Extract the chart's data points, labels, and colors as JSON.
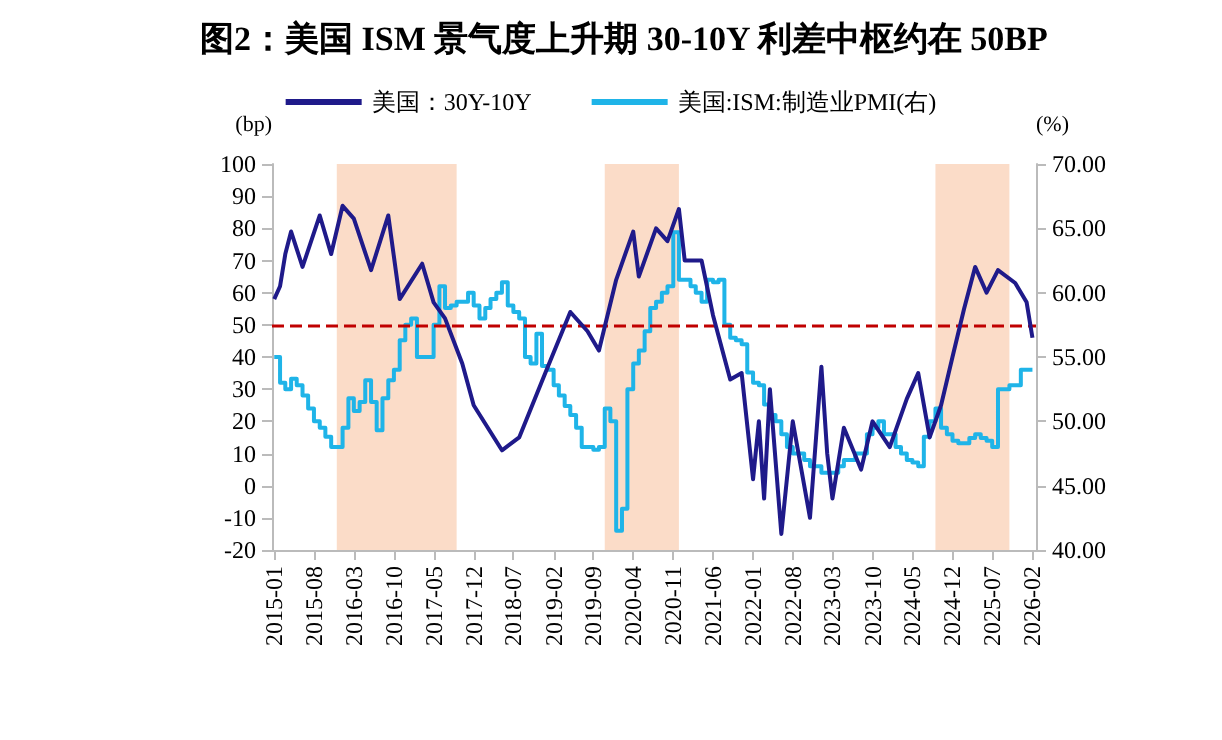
{
  "chart_data": {
    "type": "line",
    "title": "图2：美国 ISM 景气度上升期 30-10Y 利差中枢约在 50BP",
    "ylabel": "(bp)",
    "y2label": "(%)",
    "xlim": [
      "2014-12-20",
      "2026-02-20"
    ],
    "xticks": [
      "2015-01",
      "2015-08",
      "2016-03",
      "2016-10",
      "2017-05",
      "2017-12",
      "2018-07",
      "2019-02",
      "2019-09",
      "2020-04",
      "2020-11",
      "2021-06",
      "2022-01",
      "2022-08",
      "2023-03",
      "2023-10",
      "2024-05",
      "2024-12",
      "2025-07",
      "2026-02"
    ],
    "ylim": [
      -20,
      100
    ],
    "yticks": [
      -20,
      -10,
      0,
      10,
      20,
      30,
      40,
      50,
      60,
      70,
      80,
      90,
      100
    ],
    "y2lim": [
      40,
      70
    ],
    "y2ticks": [
      {
        "value": 40,
        "label": "40.00"
      },
      {
        "value": 45,
        "label": "45.00"
      },
      {
        "value": 50,
        "label": "50.00"
      },
      {
        "value": 55,
        "label": "55.00"
      },
      {
        "value": 60,
        "label": "60.00"
      },
      {
        "value": 65,
        "label": "65.00"
      },
      {
        "value": 70,
        "label": "70.00"
      }
    ],
    "legend": "top",
    "grid": false,
    "marker": "none",
    "line_style": "solid",
    "series": [
      {
        "name": "美国：30Y-10Y",
        "type": "line",
        "color": "#1f1a8a",
        "x": [
          "2015-01",
          "2015-02",
          "2015-03",
          "2015-04",
          "2015-06",
          "2015-09",
          "2015-11",
          "2016-01",
          "2016-03",
          "2016-06",
          "2016-09",
          "2016-11",
          "2017-03",
          "2017-05",
          "2017-07",
          "2017-10",
          "2017-12",
          "2018-05",
          "2018-08",
          "2019-01",
          "2019-05",
          "2019-08",
          "2019-10",
          "2020-01",
          "2020-04",
          "2020-05",
          "2020-08",
          "2020-10",
          "2020-12",
          "2021-01",
          "2021-04",
          "2021-06",
          "2021-09",
          "2021-11",
          "2022-01",
          "2022-02",
          "2022-03",
          "2022-04",
          "2022-06",
          "2022-08",
          "2022-11",
          "2023-01",
          "2023-02",
          "2023-03",
          "2023-05",
          "2023-08",
          "2023-10",
          "2024-01",
          "2024-04",
          "2024-06",
          "2024-08",
          "2024-10",
          "2024-12",
          "2025-02",
          "2025-04",
          "2025-06",
          "2025-08",
          "2025-11",
          "2026-01",
          "2026-02"
        ],
        "values": [
          58,
          62,
          72,
          79,
          68,
          84,
          72,
          87,
          83,
          67,
          84,
          58,
          69,
          57,
          52,
          38,
          25,
          11,
          15,
          37,
          54,
          48,
          42,
          64,
          79,
          65,
          80,
          76,
          86,
          70,
          70,
          53,
          33,
          35,
          2,
          20,
          -4,
          30,
          -15,
          20,
          -10,
          37,
          10,
          -4,
          18,
          5,
          20,
          12,
          27,
          35,
          15,
          25,
          40,
          55,
          68,
          60,
          67,
          63,
          57,
          46
        ]
      },
      {
        "name": "美国:ISM:制造业PMI(右)",
        "type": "step",
        "axis": "y2",
        "color": "#1fb4e8",
        "x": [
          "2015-01",
          "2015-02",
          "2015-03",
          "2015-04",
          "2015-05",
          "2015-06",
          "2015-07",
          "2015-08",
          "2015-09",
          "2015-10",
          "2015-11",
          "2015-12",
          "2016-01",
          "2016-02",
          "2016-03",
          "2016-04",
          "2016-05",
          "2016-06",
          "2016-07",
          "2016-08",
          "2016-09",
          "2016-10",
          "2016-11",
          "2016-12",
          "2017-01",
          "2017-02",
          "2017-03",
          "2017-04",
          "2017-05",
          "2017-06",
          "2017-07",
          "2017-08",
          "2017-09",
          "2017-10",
          "2017-11",
          "2017-12",
          "2018-01",
          "2018-02",
          "2018-03",
          "2018-04",
          "2018-05",
          "2018-06",
          "2018-07",
          "2018-08",
          "2018-09",
          "2018-10",
          "2018-11",
          "2018-12",
          "2019-01",
          "2019-02",
          "2019-03",
          "2019-04",
          "2019-05",
          "2019-06",
          "2019-07",
          "2019-08",
          "2019-09",
          "2019-10",
          "2019-11",
          "2019-12",
          "2020-01",
          "2020-02",
          "2020-03",
          "2020-04",
          "2020-05",
          "2020-06",
          "2020-07",
          "2020-08",
          "2020-09",
          "2020-10",
          "2020-11",
          "2020-12",
          "2021-01",
          "2021-02",
          "2021-03",
          "2021-04",
          "2021-05",
          "2021-06",
          "2021-07",
          "2021-08",
          "2021-09",
          "2021-10",
          "2021-11",
          "2021-12",
          "2022-01",
          "2022-02",
          "2022-03",
          "2022-04",
          "2022-05",
          "2022-06",
          "2022-07",
          "2022-08",
          "2022-09",
          "2022-10",
          "2022-11",
          "2022-12",
          "2023-01",
          "2023-02",
          "2023-03",
          "2023-04",
          "2023-05",
          "2023-06",
          "2023-07",
          "2023-08",
          "2023-09",
          "2023-10",
          "2023-11",
          "2023-12",
          "2024-01",
          "2024-02",
          "2024-03",
          "2024-04",
          "2024-05",
          "2024-06",
          "2024-07",
          "2024-08",
          "2024-09",
          "2024-10",
          "2024-11",
          "2024-12",
          "2025-01",
          "2025-02",
          "2025-03",
          "2025-04",
          "2025-05",
          "2025-06",
          "2025-07",
          "2025-08",
          "2025-09",
          "2025-10",
          "2025-11",
          "2025-12",
          "2026-01",
          "2026-02"
        ],
        "values": [
          55.0,
          53.0,
          52.5,
          53.3,
          52.8,
          52.0,
          51.0,
          50.0,
          49.5,
          48.8,
          48.0,
          48.0,
          49.5,
          51.8,
          50.8,
          51.5,
          53.2,
          51.5,
          49.3,
          51.8,
          53.2,
          54.0,
          56.3,
          57.5,
          58.0,
          55.0,
          55.0,
          55.0,
          57.5,
          60.5,
          58.8,
          59.0,
          59.3,
          59.3,
          60.0,
          59.0,
          58.0,
          58.8,
          59.5,
          60.0,
          60.8,
          59.0,
          58.5,
          58.0,
          55.0,
          54.5,
          56.8,
          54.3,
          54.0,
          52.8,
          52.0,
          51.2,
          50.5,
          49.5,
          48.0,
          48.0,
          47.8,
          48.0,
          51.0,
          50.0,
          41.5,
          43.2,
          52.5,
          54.5,
          55.5,
          57.0,
          58.8,
          59.3,
          60.0,
          60.5,
          64.7,
          61.0,
          61.0,
          60.5,
          60.0,
          59.3,
          61.0,
          60.8,
          61.0,
          57.5,
          56.5,
          56.3,
          56.0,
          53.8,
          53.0,
          52.8,
          51.3,
          50.5,
          50.0,
          49.0,
          48.0,
          47.5,
          47.5,
          47.0,
          46.5,
          46.5,
          46.0,
          46.0,
          46.0,
          46.5,
          47.0,
          47.0,
          47.5,
          47.5,
          49.0,
          49.5,
          50.0,
          49.0,
          49.0,
          48.0,
          47.5,
          47.0,
          46.8,
          46.5,
          48.8,
          50.0,
          51.0,
          49.5,
          49.0,
          48.5,
          48.3,
          48.3,
          48.7,
          49.0,
          48.7,
          48.5,
          48.0,
          52.5,
          52.5,
          52.8,
          52.8,
          54.0,
          54.0,
          54.0
        ]
      }
    ],
    "ref_lines": [
      {
        "axis": "y",
        "value": 50,
        "color": "#c00000",
        "line_style": "dashed"
      }
    ],
    "bands": [
      {
        "axis": "x",
        "from": "2015-12",
        "to": "2017-09",
        "color": "#fbdcc8"
      },
      {
        "axis": "x",
        "from": "2019-11",
        "to": "2020-12",
        "color": "#fbdcc8"
      },
      {
        "axis": "x",
        "from": "2024-09",
        "to": "2025-10",
        "color": "#fbdcc8"
      }
    ]
  }
}
